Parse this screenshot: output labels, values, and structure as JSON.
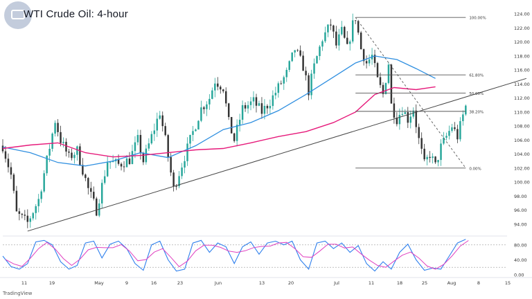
{
  "header": {
    "title": "WTI Crude Oil: 4-hour"
  },
  "footer": {
    "brand": "TradingView"
  },
  "colors": {
    "bull": "#26a69a",
    "bear": "#333333",
    "ma_blue": "#2f8fe0",
    "ma_pink": "#e6197a",
    "trend": "#444444",
    "stoch_k": "#2f80ed",
    "stoch_d": "#e040c0"
  },
  "chart_data": [
    {
      "type": "candlestick",
      "title": "WTI Crude Oil: 4-hour",
      "x_tick_labels": [
        "11",
        "19",
        "May",
        "9",
        "16",
        "23",
        "Jun",
        "13",
        "20",
        "Jul",
        "11",
        "18",
        "25",
        "Aug",
        "8",
        "15"
      ],
      "y_tick_labels": [
        "94.00",
        "96.00",
        "98.00",
        "100.00",
        "102.00",
        "104.00",
        "106.00",
        "108.00",
        "110.00",
        "112.00",
        "114.00",
        "116.00",
        "118.00",
        "120.00",
        "122.00",
        "124.00"
      ],
      "ylim": [
        92.6,
        125.4
      ],
      "path_points": [
        {
          "t": 0,
          "p": 105.2
        },
        {
          "t": 3,
          "p": 101.0
        },
        {
          "t": 5,
          "p": 95.5
        },
        {
          "t": 9,
          "p": 94.2
        },
        {
          "t": 13,
          "p": 97.5
        },
        {
          "t": 17,
          "p": 105.0
        },
        {
          "t": 19,
          "p": 108.8
        },
        {
          "t": 21,
          "p": 106.0
        },
        {
          "t": 24,
          "p": 103.5
        },
        {
          "t": 27,
          "p": 104.5
        },
        {
          "t": 31,
          "p": 99.0
        },
        {
          "t": 34,
          "p": 96.0
        },
        {
          "t": 38,
          "p": 103.0
        },
        {
          "t": 42,
          "p": 102.5
        },
        {
          "t": 46,
          "p": 103.2
        },
        {
          "t": 49,
          "p": 106.0
        },
        {
          "t": 51,
          "p": 103.0
        },
        {
          "t": 54,
          "p": 106.5
        },
        {
          "t": 57,
          "p": 110.0
        },
        {
          "t": 59,
          "p": 106.0
        },
        {
          "t": 62,
          "p": 99.0
        },
        {
          "t": 65,
          "p": 102.5
        },
        {
          "t": 68,
          "p": 106.0
        },
        {
          "t": 72,
          "p": 110.5
        },
        {
          "t": 75,
          "p": 112.0
        },
        {
          "t": 77,
          "p": 114.5
        },
        {
          "t": 80,
          "p": 113.5
        },
        {
          "t": 82,
          "p": 108.5
        },
        {
          "t": 84,
          "p": 106.0
        },
        {
          "t": 87,
          "p": 110.5
        },
        {
          "t": 91,
          "p": 111.5
        },
        {
          "t": 94,
          "p": 110.0
        },
        {
          "t": 97,
          "p": 111.5
        },
        {
          "t": 100,
          "p": 113.5
        },
        {
          "t": 103,
          "p": 115.5
        },
        {
          "t": 106,
          "p": 119.0
        },
        {
          "t": 109,
          "p": 116.5
        },
        {
          "t": 111,
          "p": 113.0
        },
        {
          "t": 113,
          "p": 116.5
        },
        {
          "t": 116,
          "p": 120.5
        },
        {
          "t": 119,
          "p": 122.5
        },
        {
          "t": 121,
          "p": 119.5
        },
        {
          "t": 123,
          "p": 121.5
        },
        {
          "t": 125,
          "p": 119.0
        },
        {
          "t": 127,
          "p": 122.5
        },
        {
          "t": 128,
          "p": 123.5
        },
        {
          "t": 130,
          "p": 119.0
        },
        {
          "t": 132,
          "p": 117.0
        },
        {
          "t": 134,
          "p": 118.0
        },
        {
          "t": 136,
          "p": 114.5
        },
        {
          "t": 138,
          "p": 112.5
        },
        {
          "t": 140,
          "p": 117.0
        },
        {
          "t": 141,
          "p": 111.0
        },
        {
          "t": 143,
          "p": 109.0
        },
        {
          "t": 145,
          "p": 110.5
        },
        {
          "t": 147,
          "p": 109.0
        },
        {
          "t": 149,
          "p": 110.5
        },
        {
          "t": 151,
          "p": 106.0
        },
        {
          "t": 153,
          "p": 102.5
        },
        {
          "t": 155,
          "p": 104.0
        },
        {
          "t": 157,
          "p": 102.3
        },
        {
          "t": 159,
          "p": 105.0
        },
        {
          "t": 161,
          "p": 106.5
        },
        {
          "t": 163,
          "p": 108.0
        },
        {
          "t": 165,
          "p": 106.5
        },
        {
          "t": 167,
          "p": 109.5
        },
        {
          "t": 168,
          "p": 110.8
        }
      ],
      "moving_average_blue": [
        {
          "t": 0,
          "p": 105.0
        },
        {
          "t": 10,
          "p": 104.2
        },
        {
          "t": 20,
          "p": 102.8
        },
        {
          "t": 30,
          "p": 102.3
        },
        {
          "t": 40,
          "p": 103.0
        },
        {
          "t": 50,
          "p": 104.2
        },
        {
          "t": 60,
          "p": 103.5
        },
        {
          "t": 70,
          "p": 105.2
        },
        {
          "t": 80,
          "p": 107.5
        },
        {
          "t": 90,
          "p": 108.5
        },
        {
          "t": 100,
          "p": 110.2
        },
        {
          "t": 110,
          "p": 112.5
        },
        {
          "t": 120,
          "p": 115.0
        },
        {
          "t": 128,
          "p": 117.0
        },
        {
          "t": 135,
          "p": 118.0
        },
        {
          "t": 143,
          "p": 117.5
        },
        {
          "t": 150,
          "p": 116.2
        },
        {
          "t": 157,
          "p": 114.8
        }
      ],
      "moving_average_pink": [
        {
          "t": 0,
          "p": 104.8
        },
        {
          "t": 10,
          "p": 105.3
        },
        {
          "t": 20,
          "p": 105.6
        },
        {
          "t": 30,
          "p": 104.2
        },
        {
          "t": 40,
          "p": 103.6
        },
        {
          "t": 50,
          "p": 103.8
        },
        {
          "t": 60,
          "p": 104.2
        },
        {
          "t": 70,
          "p": 104.6
        },
        {
          "t": 80,
          "p": 104.8
        },
        {
          "t": 90,
          "p": 105.6
        },
        {
          "t": 100,
          "p": 106.5
        },
        {
          "t": 110,
          "p": 107.2
        },
        {
          "t": 120,
          "p": 108.5
        },
        {
          "t": 128,
          "p": 110.0
        },
        {
          "t": 135,
          "p": 112.5
        },
        {
          "t": 142,
          "p": 113.5
        },
        {
          "t": 150,
          "p": 113.2
        },
        {
          "t": 157,
          "p": 113.6
        }
      ],
      "trendline": {
        "start": {
          "t": 9,
          "p": 93.0
        },
        "end": {
          "t": 190,
          "p": 114.8
        }
      },
      "fib_diagonal": {
        "start": {
          "t": 128,
          "p": 123.5
        },
        "end": {
          "t": 168,
          "p": 102.0
        }
      },
      "fibonacci": {
        "x_from": 128,
        "x_to": 168,
        "levels": [
          {
            "label": "100.00%",
            "price": 123.5
          },
          {
            "label": "61.80%",
            "price": 115.3
          },
          {
            "label": "50.00%",
            "price": 112.7
          },
          {
            "label": "38.20%",
            "price": 110.1
          },
          {
            "label": "0.00%",
            "price": 102.0
          }
        ]
      }
    },
    {
      "type": "line",
      "subtype": "stochastic",
      "y_tick_labels": [
        "80.00",
        "40.00",
        "0.00"
      ],
      "ylim": [
        0,
        100
      ],
      "levels": [
        80,
        20
      ],
      "k_points": [
        {
          "t": 0,
          "v": 50
        },
        {
          "t": 3,
          "v": 22
        },
        {
          "t": 6,
          "v": 15
        },
        {
          "t": 9,
          "v": 30
        },
        {
          "t": 12,
          "v": 88
        },
        {
          "t": 15,
          "v": 92
        },
        {
          "t": 18,
          "v": 80
        },
        {
          "t": 21,
          "v": 35
        },
        {
          "t": 24,
          "v": 15
        },
        {
          "t": 27,
          "v": 25
        },
        {
          "t": 30,
          "v": 85
        },
        {
          "t": 33,
          "v": 90
        },
        {
          "t": 36,
          "v": 45
        },
        {
          "t": 39,
          "v": 82
        },
        {
          "t": 42,
          "v": 90
        },
        {
          "t": 45,
          "v": 70
        },
        {
          "t": 48,
          "v": 30
        },
        {
          "t": 51,
          "v": 12
        },
        {
          "t": 54,
          "v": 80
        },
        {
          "t": 57,
          "v": 90
        },
        {
          "t": 60,
          "v": 40
        },
        {
          "t": 63,
          "v": 10
        },
        {
          "t": 66,
          "v": 15
        },
        {
          "t": 69,
          "v": 85
        },
        {
          "t": 72,
          "v": 92
        },
        {
          "t": 75,
          "v": 60
        },
        {
          "t": 78,
          "v": 85
        },
        {
          "t": 81,
          "v": 75
        },
        {
          "t": 84,
          "v": 30
        },
        {
          "t": 87,
          "v": 75
        },
        {
          "t": 90,
          "v": 88
        },
        {
          "t": 93,
          "v": 55
        },
        {
          "t": 96,
          "v": 85
        },
        {
          "t": 99,
          "v": 90
        },
        {
          "t": 102,
          "v": 80
        },
        {
          "t": 105,
          "v": 90
        },
        {
          "t": 108,
          "v": 40
        },
        {
          "t": 111,
          "v": 15
        },
        {
          "t": 114,
          "v": 85
        },
        {
          "t": 117,
          "v": 90
        },
        {
          "t": 120,
          "v": 70
        },
        {
          "t": 123,
          "v": 85
        },
        {
          "t": 126,
          "v": 60
        },
        {
          "t": 129,
          "v": 78
        },
        {
          "t": 132,
          "v": 30
        },
        {
          "t": 135,
          "v": 10
        },
        {
          "t": 138,
          "v": 35
        },
        {
          "t": 141,
          "v": 15
        },
        {
          "t": 144,
          "v": 60
        },
        {
          "t": 147,
          "v": 82
        },
        {
          "t": 150,
          "v": 40
        },
        {
          "t": 153,
          "v": 12
        },
        {
          "t": 156,
          "v": 18
        },
        {
          "t": 159,
          "v": 15
        },
        {
          "t": 162,
          "v": 50
        },
        {
          "t": 165,
          "v": 85
        },
        {
          "t": 168,
          "v": 95
        }
      ]
    }
  ]
}
